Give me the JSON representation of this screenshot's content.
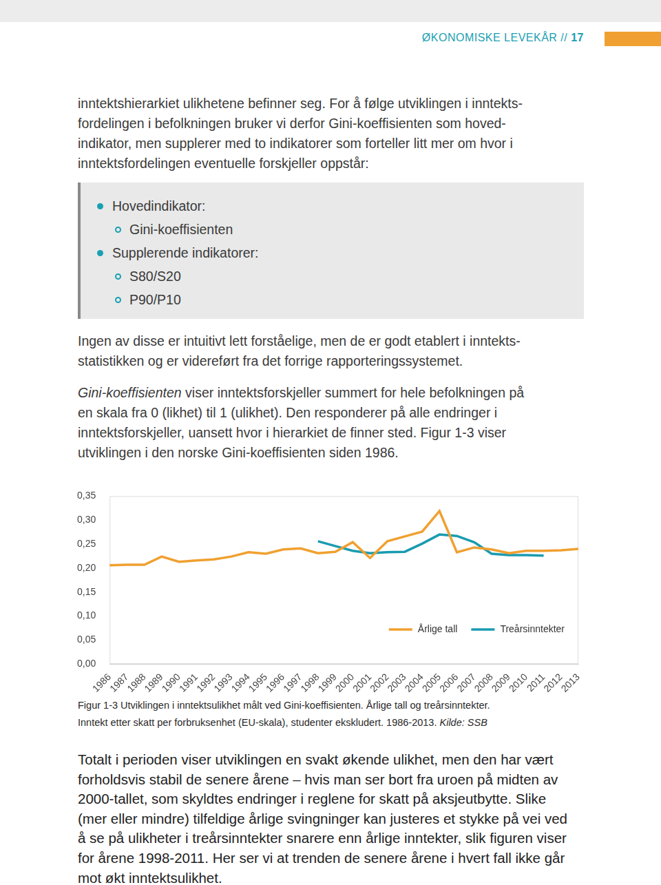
{
  "header": {
    "title": "ØKONOMISKE LEVEKÅR",
    "separator": "//",
    "page": 17
  },
  "intro": [
    "inntektshierarkiet ulikhetene befinner seg. For å følge utviklingen i inntekts-",
    "fordelingen i befolkningen bruker vi derfor Gini-koeffisienten som hoved-",
    "indikator, men supplerer med to indikatorer som forteller litt mer om hvor i",
    "inntektsfordelingen eventuelle forskjeller oppstår:"
  ],
  "indicator_box": [
    {
      "label": "Hovedindikator:",
      "items": [
        "Gini-koeffisienten"
      ]
    },
    {
      "label": "Supplerende indikatorer:",
      "items": [
        "S80/S20",
        "P90/P10"
      ]
    }
  ],
  "middle": [
    [
      "Ingen av disse er intuitivt lett forståelige, men de er godt etablert i inntekts-",
      "statistikken og er videreført fra det forrige rapporteringssystemet."
    ],
    [
      [
        {
          "text": "Gini-koeffisienten",
          "italic": true
        },
        {
          "text": " viser inntektsforskjeller summert for hele befolkningen på"
        }
      ],
      "en skala fra 0 (likhet) til 1 (ulikhet). Den responderer på alle endringer i",
      "inntektsforskjeller, uansett hvor i hierarkiet de finner sted. Figur 1-3 viser",
      "utviklingen i den norske Gini-koeffisienten siden 1986."
    ]
  ],
  "chart_data": {
    "type": "line",
    "categories": [
      "1986",
      "1987",
      "1988",
      "1989",
      "1990",
      "1991",
      "1992",
      "1993",
      "1994",
      "1995",
      "1996",
      "1997",
      "1998",
      "1999",
      "2000",
      "2001",
      "2002",
      "2003",
      "2004",
      "2005",
      "2006",
      "2007",
      "2008",
      "2009",
      "2010",
      "2011",
      "2012",
      "2013"
    ],
    "series": [
      {
        "name": "Årlige tall",
        "color": "#f0a030",
        "values": [
          0.206,
          0.207,
          0.207,
          0.224,
          0.213,
          0.216,
          0.218,
          0.224,
          0.233,
          0.23,
          0.239,
          0.241,
          0.231,
          0.234,
          0.254,
          0.221,
          0.256,
          0.266,
          0.276,
          0.319,
          0.233,
          0.243,
          0.239,
          0.231,
          0.236,
          0.236,
          0.237,
          0.24
        ]
      },
      {
        "name": "Treårsinntekter",
        "color": "#1a9bb0",
        "values": [
          null,
          null,
          null,
          null,
          null,
          null,
          null,
          null,
          null,
          null,
          null,
          null,
          0.256,
          0.246,
          0.236,
          0.231,
          0.233,
          0.234,
          0.251,
          0.27,
          0.267,
          0.254,
          0.23,
          0.227,
          0.227,
          0.226,
          null,
          null
        ]
      }
    ],
    "ylim": [
      0,
      0.35
    ],
    "yticks": [
      {
        "value": 0,
        "label": "0,00"
      },
      {
        "value": 0.05,
        "label": "0,05"
      },
      {
        "value": 0.1,
        "label": "0,10"
      },
      {
        "value": 0.15,
        "label": "0,15"
      },
      {
        "value": 0.2,
        "label": "0,20"
      },
      {
        "value": 0.25,
        "label": "0,25"
      },
      {
        "value": 0.3,
        "label": "0,30"
      },
      {
        "value": 0.35,
        "label": "0,35"
      }
    ],
    "grid": false,
    "legend": "lower right"
  },
  "caption": [
    "Figur 1-3 Utviklingen i inntektsulikhet målt ved Gini-koeffisienten. Årlige tall og treårsinntekter.",
    [
      {
        "text": "Inntekt etter skatt per forbruksenhet (EU-skala), studenter ekskludert. 1986-2013. "
      },
      {
        "text": "Kilde: SSB",
        "italic": true
      }
    ]
  ],
  "closing": [
    "Totalt i perioden viser utviklingen en svakt økende ulikhet, men den har vært",
    "forholdsvis stabil de senere årene – hvis man ser bort fra uroen på midten av",
    "2000-tallet, som skyldtes endringer i reglene for skatt på aksjeutbytte. Slike",
    "(mer eller mindre) tilfeldige årlige svingninger kan justeres et stykke på vei ved",
    "å se på ulikheter i treårsinntekter snarere enn årlige inntekter, slik figuren viser",
    "for årene 1998-2011. Her ser vi at trenden de senere årene i hvert fall ikke går",
    "mot økt inntektsulikhet."
  ]
}
